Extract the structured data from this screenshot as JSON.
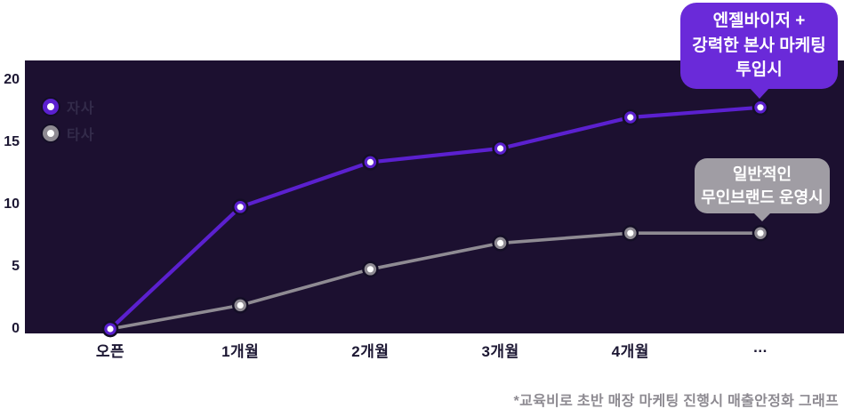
{
  "colors": {
    "plot_background": "#1c1030",
    "primary": "#5b20cf",
    "primary_bubble": "#6a2ad9",
    "secondary": "#8f8b93",
    "secondary_bubble": "#a09da4",
    "axis_label": "#1c1733",
    "legend_label": "#332b4a",
    "footnote": "#8d8a91",
    "point_center": "#ffffff",
    "point_outline": "#140e26"
  },
  "chart_data": {
    "type": "line",
    "title": "",
    "xlabel": "",
    "ylabel": "",
    "categories": [
      "오픈",
      "1개월",
      "2개월",
      "3개월",
      "4개월",
      "..."
    ],
    "series": [
      {
        "name": "자사",
        "color": "#5b20cf",
        "values": [
          0,
          9.8,
          13.4,
          14.5,
          17.0,
          17.8
        ]
      },
      {
        "name": "타사",
        "color": "#8f8b93",
        "values": [
          0,
          1.9,
          4.8,
          6.9,
          7.7,
          7.7
        ]
      }
    ],
    "yticks": [
      0,
      5,
      10,
      15,
      20
    ],
    "ylim": [
      0,
      21.5
    ],
    "grid": false,
    "legend_position": "top-left",
    "marker": "ring-dot"
  },
  "callouts": {
    "primary": {
      "text": "엔젤바이저 +\n강력한 본사 마케팅\n투입시"
    },
    "secondary": {
      "text": "일반적인\n무인브랜드 운영시"
    }
  },
  "footnote": "*교육비로 초반 매장 마케팅 진행시 매출안정화 그래프"
}
